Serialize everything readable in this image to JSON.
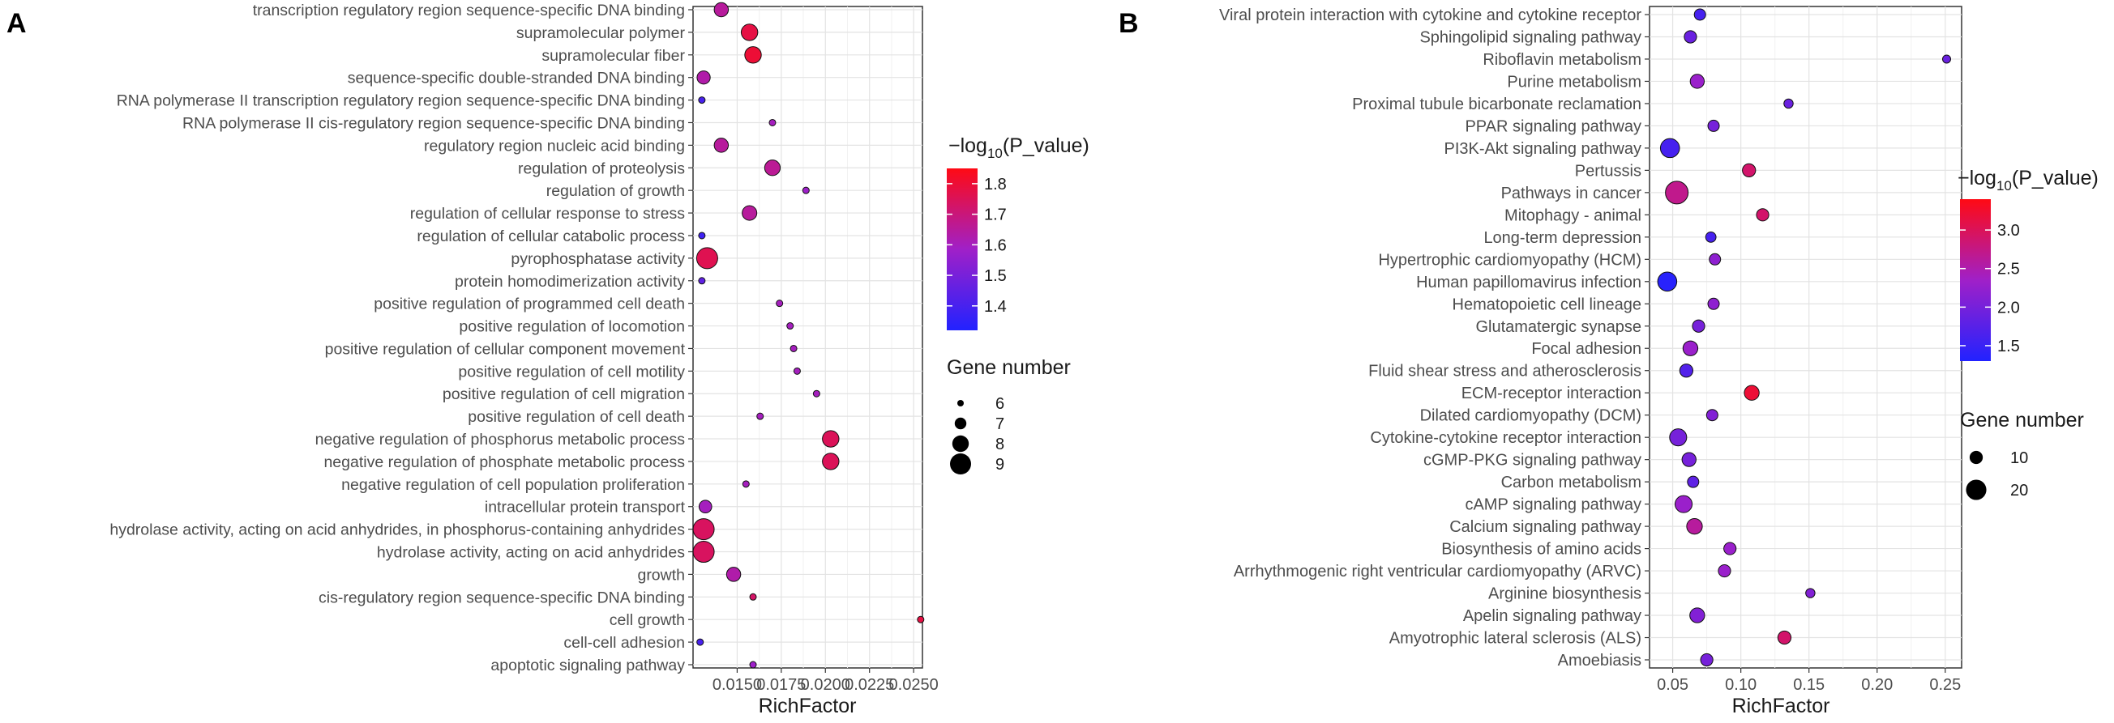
{
  "chart_data": [
    {
      "panel": "A",
      "type": "scatter",
      "xlabel": "RichFactor",
      "ylabel": "",
      "xlim": [
        0.0125,
        0.0255
      ],
      "x_ticks": [
        0.015,
        0.0175,
        0.02,
        0.0225,
        0.025
      ],
      "x_tick_labels": [
        "0.0150",
        "0.0175",
        "0.0200",
        "0.0225",
        "0.0250"
      ],
      "color_legend": {
        "title_prefix": "−log",
        "title_sub": "10",
        "title_suffix": "(P_value)",
        "min": 1.32,
        "max": 1.85,
        "ticks": [
          1.4,
          1.5,
          1.6,
          1.7,
          1.8
        ],
        "tick_labels": [
          "1.4",
          "1.5",
          "1.6",
          "1.7",
          "1.8"
        ]
      },
      "size_legend": {
        "title": "Gene number",
        "values": [
          6,
          7,
          8,
          9
        ],
        "labels": [
          "6",
          "7",
          "8",
          "9"
        ]
      },
      "categories": [
        "transcription regulatory region sequence-specific DNA binding",
        "supramolecular polymer",
        "supramolecular fiber",
        "sequence-specific double-stranded DNA binding",
        "RNA polymerase II transcription regulatory region sequence-specific DNA binding",
        "RNA polymerase II cis-regulatory region sequence-specific DNA binding",
        "regulatory region nucleic acid binding",
        "regulation of proteolysis",
        "regulation of growth",
        "regulation of cellular response to stress",
        "regulation of cellular catabolic process",
        "pyrophosphatase activity",
        "protein homodimerization activity",
        "positive regulation of programmed cell death",
        "positive regulation of locomotion",
        "positive regulation of cellular component movement",
        "positive regulation of cell motility",
        "positive regulation of cell migration",
        "positive regulation of cell death",
        "negative regulation of phosphorus metabolic process",
        "negative regulation of phosphate metabolic process",
        "negative regulation of cell population proliferation",
        "intracellular protein transport",
        "hydrolase activity, acting on acid anhydrides, in phosphorus-containing anhydrides",
        "hydrolase activity, acting on acid anhydrides",
        "growth",
        "cis-regulatory region sequence-specific DNA binding",
        "cell growth",
        "cell-cell adhesion",
        "apoptotic signaling pathway"
      ],
      "x": [
        0.0141,
        0.0157,
        0.0159,
        0.0131,
        0.013,
        0.017,
        0.0141,
        0.017,
        0.0189,
        0.0157,
        0.013,
        0.0133,
        0.013,
        0.0174,
        0.018,
        0.0182,
        0.0184,
        0.0195,
        0.0163,
        0.0203,
        0.0203,
        0.0155,
        0.0132,
        0.0131,
        0.0131,
        0.0148,
        0.0159,
        0.0254,
        0.0129,
        0.0159
      ],
      "p_value": [
        1.65,
        1.78,
        1.8,
        1.63,
        1.4,
        1.6,
        1.65,
        1.66,
        1.58,
        1.65,
        1.38,
        1.76,
        1.45,
        1.6,
        1.6,
        1.6,
        1.6,
        1.6,
        1.6,
        1.75,
        1.75,
        1.6,
        1.6,
        1.74,
        1.74,
        1.63,
        1.73,
        1.78,
        1.4,
        1.58
      ],
      "gene_number": [
        7.5,
        8,
        8,
        7.3,
        6,
        6,
        7.5,
        7.8,
        6,
        7.6,
        6,
        9,
        6,
        6,
        6,
        6,
        6,
        6,
        6,
        8,
        8,
        6,
        7.2,
        9,
        9,
        7.5,
        6,
        6,
        6,
        6
      ]
    },
    {
      "panel": "B",
      "type": "scatter",
      "xlabel": "RichFactor",
      "ylabel": "",
      "xlim": [
        0.033,
        0.262
      ],
      "x_ticks": [
        0.05,
        0.1,
        0.15,
        0.2,
        0.25
      ],
      "x_tick_labels": [
        "0.05",
        "0.10",
        "0.15",
        "0.20",
        "0.25"
      ],
      "color_legend": {
        "title_prefix": "−log",
        "title_sub": "10",
        "title_suffix": "(P_value)",
        "min": 1.3,
        "max": 3.4,
        "ticks": [
          1.5,
          2.0,
          2.5,
          3.0
        ],
        "tick_labels": [
          "1.5",
          "2.0",
          "2.5",
          "3.0"
        ]
      },
      "size_legend": {
        "title": "Gene number",
        "values": [
          10,
          20
        ],
        "labels": [
          "10",
          "20"
        ]
      },
      "categories": [
        "Viral protein interaction with cytokine and cytokine receptor",
        "Sphingolipid signaling pathway",
        "Riboflavin metabolism",
        "Purine metabolism",
        "Proximal tubule bicarbonate reclamation",
        "PPAR signaling pathway",
        "PI3K-Akt signaling pathway",
        "Pertussis",
        "Pathways in cancer",
        "Mitophagy - animal",
        "Long-term depression",
        "Hypertrophic cardiomyopathy (HCM)",
        "Human papillomavirus infection",
        "Hematopoietic cell lineage",
        "Glutamatergic synapse",
        "Focal adhesion",
        "Fluid shear stress and atherosclerosis",
        "ECM-receptor interaction",
        "Dilated cardiomyopathy (DCM)",
        "Cytokine-cytokine receptor interaction",
        "cGMP-PKG signaling pathway",
        "Carbon metabolism",
        "cAMP signaling pathway",
        "Calcium signaling pathway",
        "Biosynthesis of amino acids",
        "Arrhythmogenic right ventricular cardiomyopathy (ARVC)",
        "Arginine biosynthesis",
        "Apelin signaling pathway",
        "Amyotrophic lateral sclerosis (ALS)",
        "Amoebiasis"
      ],
      "x": [
        0.07,
        0.063,
        0.251,
        0.068,
        0.135,
        0.08,
        0.048,
        0.106,
        0.053,
        0.116,
        0.078,
        0.081,
        0.046,
        0.08,
        0.069,
        0.063,
        0.06,
        0.108,
        0.079,
        0.054,
        0.062,
        0.065,
        0.058,
        0.066,
        0.092,
        0.088,
        0.151,
        0.068,
        0.132,
        0.075
      ],
      "p_value": [
        1.6,
        1.9,
        1.9,
        2.3,
        1.9,
        2.0,
        1.6,
        2.9,
        2.7,
        2.9,
        1.6,
        2.2,
        1.35,
        2.2,
        2.0,
        2.3,
        1.7,
        3.2,
        2.1,
        2.0,
        2.0,
        1.8,
        2.3,
        2.6,
        2.3,
        2.3,
        2.1,
        2.1,
        2.9,
        2.0
      ],
      "gene_number": [
        8,
        9,
        5,
        11,
        6,
        8,
        18,
        10,
        24,
        9,
        7,
        8,
        18,
        8,
        9,
        12,
        10,
        12,
        8,
        15,
        11,
        8,
        15,
        13,
        9,
        9,
        6,
        12,
        10,
        9
      ]
    }
  ]
}
